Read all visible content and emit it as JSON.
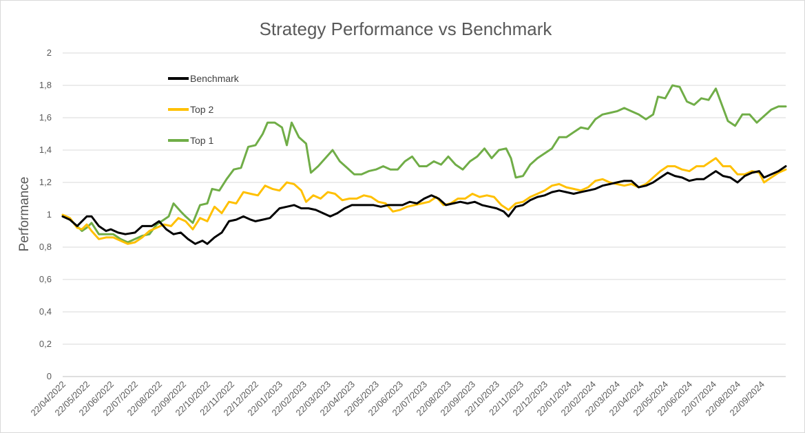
{
  "chart_data": {
    "type": "line",
    "title": "Strategy Performance vs Benchmark",
    "xlabel": "",
    "ylabel": "Performance",
    "ylim": [
      0,
      2
    ],
    "yticks": [
      "0",
      "0,2",
      "0,4",
      "0,6",
      "0,8",
      "1",
      "1,2",
      "1,4",
      "1,6",
      "1,8",
      "2"
    ],
    "x_ticks": [
      "22/04/2022",
      "22/05/2022",
      "22/06/2022",
      "22/07/2022",
      "22/08/2022",
      "22/09/2022",
      "22/10/2022",
      "22/11/2022",
      "22/12/2022",
      "22/01/2023",
      "22/02/2023",
      "22/03/2023",
      "22/04/2023",
      "22/05/2023",
      "22/06/2023",
      "22/07/2023",
      "22/08/2023",
      "22/09/2023",
      "22/10/2023",
      "22/11/2023",
      "22/12/2023",
      "22/01/2024",
      "22/02/2024",
      "22/03/2024",
      "22/04/2024",
      "22/05/2024",
      "22/06/2024",
      "22/07/2024",
      "22/08/2024",
      "22/09/2024"
    ],
    "grid": true,
    "legend_position": "top-left",
    "series": [
      {
        "name": "Benchmark",
        "color": "#000000",
        "points": [
          [
            0,
            0.99
          ],
          [
            0.3,
            0.97
          ],
          [
            0.6,
            0.93
          ],
          [
            0.8,
            0.96
          ],
          [
            1.0,
            0.99
          ],
          [
            1.2,
            0.99
          ],
          [
            1.5,
            0.93
          ],
          [
            1.8,
            0.9
          ],
          [
            2.0,
            0.91
          ],
          [
            2.3,
            0.89
          ],
          [
            2.6,
            0.88
          ],
          [
            3.0,
            0.89
          ],
          [
            3.3,
            0.93
          ],
          [
            3.7,
            0.93
          ],
          [
            4.0,
            0.96
          ],
          [
            4.3,
            0.91
          ],
          [
            4.6,
            0.88
          ],
          [
            4.9,
            0.89
          ],
          [
            5.2,
            0.85
          ],
          [
            5.5,
            0.82
          ],
          [
            5.8,
            0.84
          ],
          [
            6.0,
            0.82
          ],
          [
            6.3,
            0.86
          ],
          [
            6.6,
            0.89
          ],
          [
            6.9,
            0.96
          ],
          [
            7.2,
            0.97
          ],
          [
            7.5,
            0.99
          ],
          [
            7.8,
            0.97
          ],
          [
            8.0,
            0.96
          ],
          [
            8.3,
            0.97
          ],
          [
            8.6,
            0.98
          ],
          [
            9.0,
            1.04
          ],
          [
            9.3,
            1.05
          ],
          [
            9.6,
            1.06
          ],
          [
            9.9,
            1.04
          ],
          [
            10.2,
            1.04
          ],
          [
            10.5,
            1.03
          ],
          [
            10.8,
            1.01
          ],
          [
            11.1,
            0.99
          ],
          [
            11.4,
            1.01
          ],
          [
            11.7,
            1.04
          ],
          [
            12.0,
            1.06
          ],
          [
            12.3,
            1.06
          ],
          [
            12.6,
            1.06
          ],
          [
            12.9,
            1.06
          ],
          [
            13.2,
            1.05
          ],
          [
            13.5,
            1.06
          ],
          [
            13.8,
            1.06
          ],
          [
            14.1,
            1.06
          ],
          [
            14.4,
            1.08
          ],
          [
            14.7,
            1.07
          ],
          [
            15.0,
            1.1
          ],
          [
            15.3,
            1.12
          ],
          [
            15.6,
            1.1
          ],
          [
            15.9,
            1.06
          ],
          [
            16.2,
            1.07
          ],
          [
            16.5,
            1.08
          ],
          [
            16.8,
            1.07
          ],
          [
            17.1,
            1.08
          ],
          [
            17.4,
            1.06
          ],
          [
            17.7,
            1.05
          ],
          [
            18.0,
            1.04
          ],
          [
            18.3,
            1.02
          ],
          [
            18.5,
            0.99
          ],
          [
            18.8,
            1.05
          ],
          [
            19.1,
            1.06
          ],
          [
            19.4,
            1.09
          ],
          [
            19.7,
            1.11
          ],
          [
            20.0,
            1.12
          ],
          [
            20.3,
            1.14
          ],
          [
            20.6,
            1.15
          ],
          [
            20.9,
            1.14
          ],
          [
            21.2,
            1.13
          ],
          [
            21.5,
            1.14
          ],
          [
            21.8,
            1.15
          ],
          [
            22.1,
            1.16
          ],
          [
            22.4,
            1.18
          ],
          [
            22.7,
            1.19
          ],
          [
            23.0,
            1.2
          ],
          [
            23.3,
            1.21
          ],
          [
            23.6,
            1.21
          ],
          [
            23.9,
            1.17
          ],
          [
            24.2,
            1.18
          ],
          [
            24.5,
            1.2
          ],
          [
            24.8,
            1.23
          ],
          [
            25.1,
            1.26
          ],
          [
            25.4,
            1.24
          ],
          [
            25.7,
            1.23
          ],
          [
            26.0,
            1.21
          ],
          [
            26.3,
            1.22
          ],
          [
            26.6,
            1.22
          ],
          [
            26.9,
            1.25
          ],
          [
            27.1,
            1.27
          ],
          [
            27.4,
            1.24
          ],
          [
            27.7,
            1.23
          ],
          [
            28.0,
            1.2
          ],
          [
            28.3,
            1.24
          ],
          [
            28.6,
            1.26
          ],
          [
            28.9,
            1.27
          ],
          [
            29.1,
            1.23
          ],
          [
            29.4,
            1.25
          ],
          [
            29.7,
            1.27
          ],
          [
            30.0,
            1.3
          ]
        ]
      },
      {
        "name": "Top 2",
        "color": "#FFC000",
        "points": [
          [
            0,
            1.0
          ],
          [
            0.3,
            0.98
          ],
          [
            0.6,
            0.92
          ],
          [
            0.8,
            0.91
          ],
          [
            1.0,
            0.94
          ],
          [
            1.2,
            0.9
          ],
          [
            1.5,
            0.85
          ],
          [
            1.8,
            0.86
          ],
          [
            2.1,
            0.86
          ],
          [
            2.4,
            0.84
          ],
          [
            2.7,
            0.82
          ],
          [
            3.0,
            0.83
          ],
          [
            3.3,
            0.86
          ],
          [
            3.6,
            0.9
          ],
          [
            3.9,
            0.92
          ],
          [
            4.2,
            0.94
          ],
          [
            4.5,
            0.93
          ],
          [
            4.8,
            0.98
          ],
          [
            5.1,
            0.96
          ],
          [
            5.4,
            0.91
          ],
          [
            5.7,
            0.98
          ],
          [
            6.0,
            0.96
          ],
          [
            6.3,
            1.05
          ],
          [
            6.6,
            1.01
          ],
          [
            6.9,
            1.08
          ],
          [
            7.2,
            1.07
          ],
          [
            7.5,
            1.14
          ],
          [
            7.8,
            1.13
          ],
          [
            8.1,
            1.12
          ],
          [
            8.4,
            1.18
          ],
          [
            8.7,
            1.16
          ],
          [
            9.0,
            1.15
          ],
          [
            9.3,
            1.2
          ],
          [
            9.6,
            1.19
          ],
          [
            9.9,
            1.15
          ],
          [
            10.1,
            1.08
          ],
          [
            10.4,
            1.12
          ],
          [
            10.7,
            1.1
          ],
          [
            11.0,
            1.14
          ],
          [
            11.3,
            1.13
          ],
          [
            11.6,
            1.09
          ],
          [
            11.9,
            1.1
          ],
          [
            12.2,
            1.1
          ],
          [
            12.5,
            1.12
          ],
          [
            12.8,
            1.11
          ],
          [
            13.1,
            1.08
          ],
          [
            13.4,
            1.07
          ],
          [
            13.7,
            1.02
          ],
          [
            14.0,
            1.03
          ],
          [
            14.3,
            1.05
          ],
          [
            14.6,
            1.06
          ],
          [
            14.9,
            1.07
          ],
          [
            15.2,
            1.08
          ],
          [
            15.5,
            1.11
          ],
          [
            15.8,
            1.06
          ],
          [
            16.1,
            1.07
          ],
          [
            16.4,
            1.1
          ],
          [
            16.7,
            1.1
          ],
          [
            17.0,
            1.13
          ],
          [
            17.3,
            1.11
          ],
          [
            17.6,
            1.12
          ],
          [
            17.9,
            1.11
          ],
          [
            18.2,
            1.06
          ],
          [
            18.5,
            1.03
          ],
          [
            18.8,
            1.07
          ],
          [
            19.1,
            1.08
          ],
          [
            19.4,
            1.11
          ],
          [
            19.7,
            1.13
          ],
          [
            20.0,
            1.15
          ],
          [
            20.3,
            1.18
          ],
          [
            20.6,
            1.19
          ],
          [
            20.9,
            1.17
          ],
          [
            21.2,
            1.16
          ],
          [
            21.5,
            1.15
          ],
          [
            21.8,
            1.17
          ],
          [
            22.1,
            1.21
          ],
          [
            22.4,
            1.22
          ],
          [
            22.7,
            1.2
          ],
          [
            23.0,
            1.19
          ],
          [
            23.3,
            1.18
          ],
          [
            23.6,
            1.19
          ],
          [
            23.9,
            1.17
          ],
          [
            24.2,
            1.19
          ],
          [
            24.5,
            1.23
          ],
          [
            24.8,
            1.27
          ],
          [
            25.1,
            1.3
          ],
          [
            25.4,
            1.3
          ],
          [
            25.7,
            1.28
          ],
          [
            26.0,
            1.27
          ],
          [
            26.3,
            1.3
          ],
          [
            26.6,
            1.3
          ],
          [
            26.9,
            1.33
          ],
          [
            27.1,
            1.35
          ],
          [
            27.4,
            1.3
          ],
          [
            27.7,
            1.3
          ],
          [
            28.0,
            1.25
          ],
          [
            28.3,
            1.25
          ],
          [
            28.6,
            1.27
          ],
          [
            28.9,
            1.26
          ],
          [
            29.1,
            1.2
          ],
          [
            29.4,
            1.23
          ],
          [
            29.7,
            1.26
          ],
          [
            30.0,
            1.28
          ]
        ]
      },
      {
        "name": "Top 1",
        "color": "#70AD47",
        "points": [
          [
            0,
            0.99
          ],
          [
            0.3,
            0.97
          ],
          [
            0.6,
            0.93
          ],
          [
            0.8,
            0.9
          ],
          [
            1.0,
            0.92
          ],
          [
            1.2,
            0.95
          ],
          [
            1.5,
            0.88
          ],
          [
            1.8,
            0.88
          ],
          [
            2.1,
            0.88
          ],
          [
            2.4,
            0.85
          ],
          [
            2.7,
            0.83
          ],
          [
            3.0,
            0.85
          ],
          [
            3.3,
            0.87
          ],
          [
            3.6,
            0.88
          ],
          [
            3.9,
            0.94
          ],
          [
            4.2,
            0.97
          ],
          [
            4.4,
            0.99
          ],
          [
            4.6,
            1.07
          ],
          [
            4.9,
            1.02
          ],
          [
            5.1,
            0.99
          ],
          [
            5.4,
            0.95
          ],
          [
            5.7,
            1.06
          ],
          [
            6.0,
            1.07
          ],
          [
            6.2,
            1.16
          ],
          [
            6.5,
            1.15
          ],
          [
            6.8,
            1.22
          ],
          [
            7.1,
            1.28
          ],
          [
            7.4,
            1.29
          ],
          [
            7.7,
            1.42
          ],
          [
            8.0,
            1.43
          ],
          [
            8.3,
            1.5
          ],
          [
            8.5,
            1.57
          ],
          [
            8.8,
            1.57
          ],
          [
            9.1,
            1.54
          ],
          [
            9.3,
            1.43
          ],
          [
            9.5,
            1.57
          ],
          [
            9.8,
            1.48
          ],
          [
            10.1,
            1.44
          ],
          [
            10.3,
            1.26
          ],
          [
            10.6,
            1.3
          ],
          [
            10.9,
            1.35
          ],
          [
            11.2,
            1.4
          ],
          [
            11.5,
            1.33
          ],
          [
            11.8,
            1.29
          ],
          [
            12.1,
            1.25
          ],
          [
            12.4,
            1.25
          ],
          [
            12.7,
            1.27
          ],
          [
            13.0,
            1.28
          ],
          [
            13.3,
            1.3
          ],
          [
            13.6,
            1.28
          ],
          [
            13.9,
            1.28
          ],
          [
            14.2,
            1.33
          ],
          [
            14.5,
            1.36
          ],
          [
            14.8,
            1.3
          ],
          [
            15.1,
            1.3
          ],
          [
            15.4,
            1.33
          ],
          [
            15.7,
            1.31
          ],
          [
            16.0,
            1.36
          ],
          [
            16.3,
            1.31
          ],
          [
            16.6,
            1.28
          ],
          [
            16.9,
            1.33
          ],
          [
            17.2,
            1.36
          ],
          [
            17.5,
            1.41
          ],
          [
            17.8,
            1.35
          ],
          [
            18.1,
            1.4
          ],
          [
            18.4,
            1.41
          ],
          [
            18.6,
            1.35
          ],
          [
            18.8,
            1.23
          ],
          [
            19.1,
            1.24
          ],
          [
            19.4,
            1.31
          ],
          [
            19.7,
            1.35
          ],
          [
            20.0,
            1.38
          ],
          [
            20.3,
            1.41
          ],
          [
            20.6,
            1.48
          ],
          [
            20.9,
            1.48
          ],
          [
            21.2,
            1.51
          ],
          [
            21.5,
            1.54
          ],
          [
            21.8,
            1.53
          ],
          [
            22.1,
            1.59
          ],
          [
            22.4,
            1.62
          ],
          [
            22.7,
            1.63
          ],
          [
            23.0,
            1.64
          ],
          [
            23.3,
            1.66
          ],
          [
            23.6,
            1.64
          ],
          [
            23.9,
            1.62
          ],
          [
            24.2,
            1.59
          ],
          [
            24.5,
            1.62
          ],
          [
            24.7,
            1.73
          ],
          [
            25.0,
            1.72
          ],
          [
            25.3,
            1.8
          ],
          [
            25.6,
            1.79
          ],
          [
            25.9,
            1.7
          ],
          [
            26.2,
            1.68
          ],
          [
            26.5,
            1.72
          ],
          [
            26.8,
            1.71
          ],
          [
            27.1,
            1.78
          ],
          [
            27.4,
            1.66
          ],
          [
            27.6,
            1.58
          ],
          [
            27.9,
            1.55
          ],
          [
            28.2,
            1.62
          ],
          [
            28.5,
            1.62
          ],
          [
            28.8,
            1.57
          ],
          [
            29.1,
            1.61
          ],
          [
            29.4,
            1.65
          ],
          [
            29.7,
            1.67
          ],
          [
            30.0,
            1.67
          ]
        ]
      }
    ]
  }
}
